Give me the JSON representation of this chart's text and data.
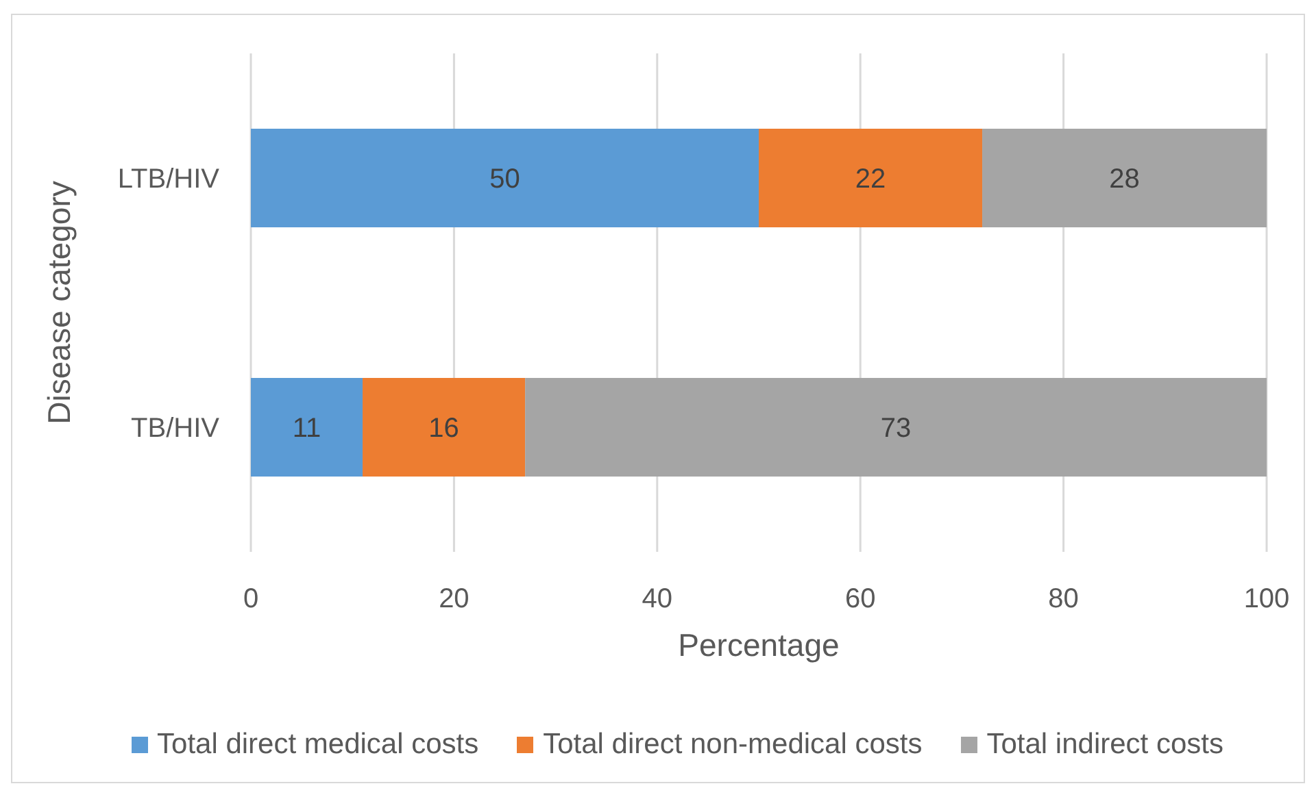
{
  "chart_data": {
    "type": "bar",
    "orientation": "horizontal",
    "stacked": true,
    "categories": [
      "LTB/HIV",
      "TB/HIV"
    ],
    "series": [
      {
        "name": "Total direct medical costs",
        "color": "#5b9bd5",
        "values": [
          50,
          11
        ]
      },
      {
        "name": "Total direct non-medical costs",
        "color": "#ed7d31",
        "values": [
          22,
          16
        ]
      },
      {
        "name": "Total indirect costs",
        "color": "#a5a5a5",
        "values": [
          28,
          73
        ]
      }
    ],
    "xlabel": "Percentage",
    "ylabel": "Disease category",
    "xlim": [
      0,
      100
    ],
    "xticks": [
      0,
      20,
      40,
      60,
      80,
      100
    ],
    "grid": "x",
    "legend": "bottom",
    "data_labels": true
  }
}
